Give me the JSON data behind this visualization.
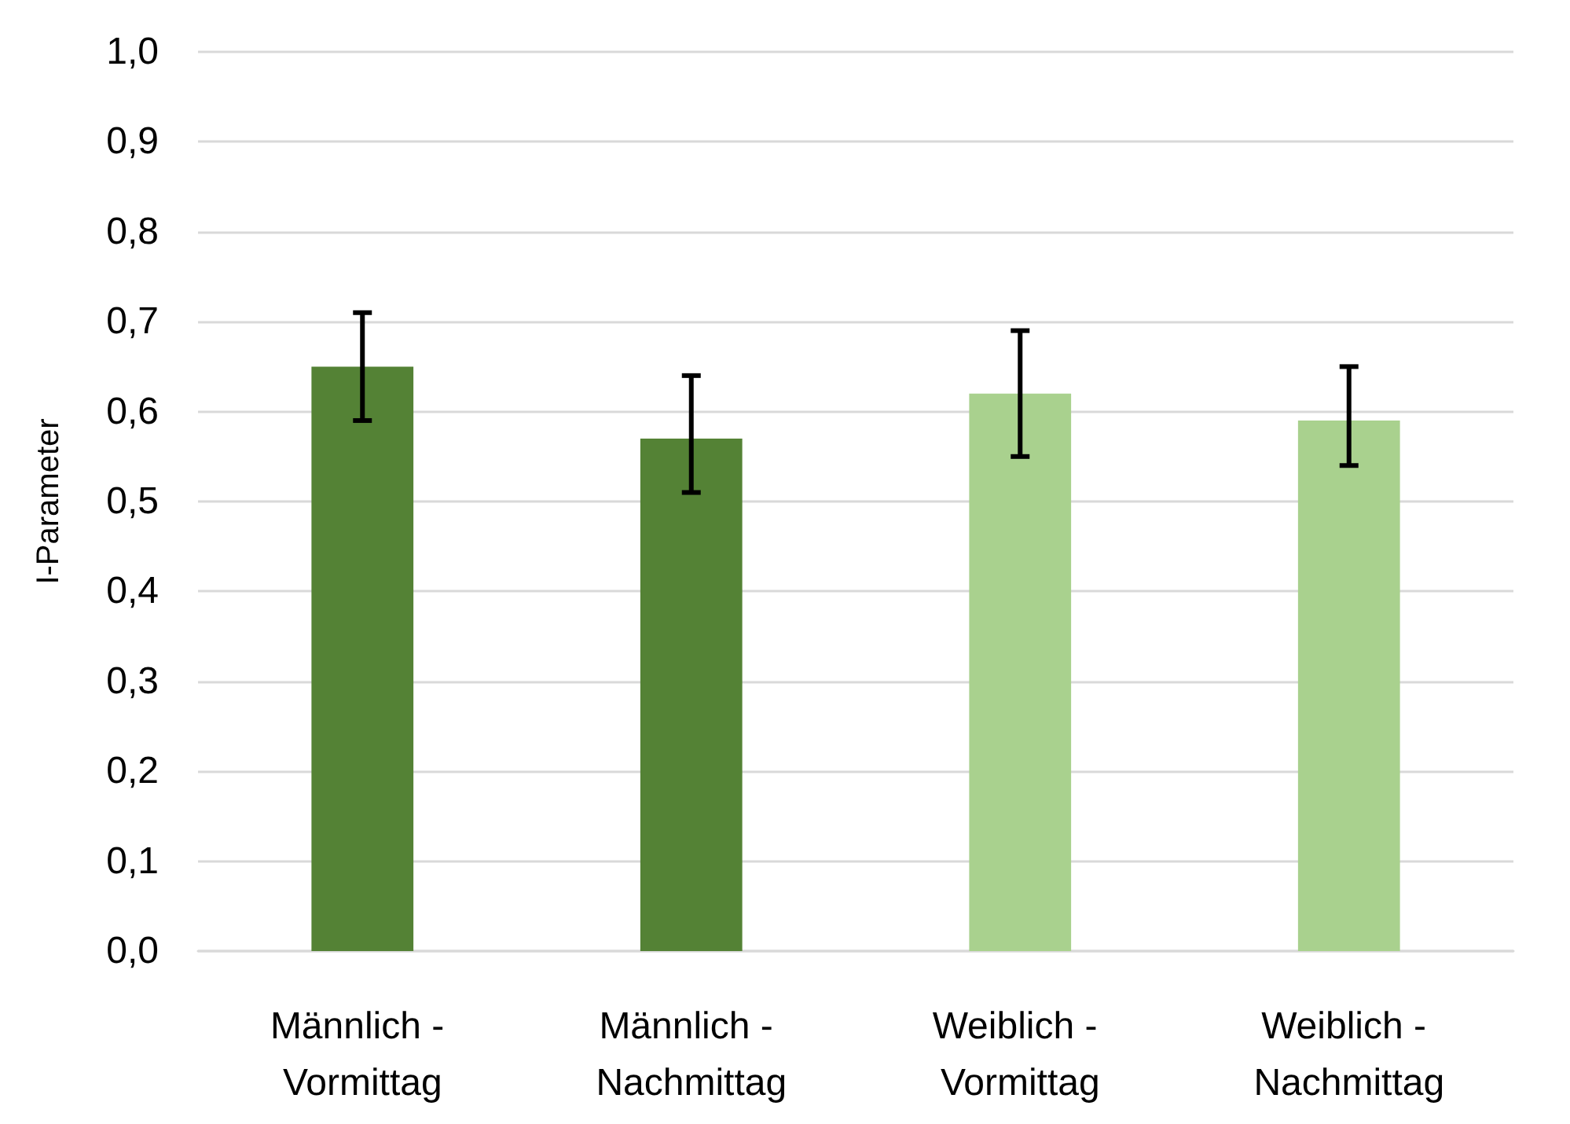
{
  "chart_data": {
    "type": "bar",
    "ylabel": "I-Parameter",
    "categories": [
      "Männlich - Vormittag",
      "Männlich - Nachmittag",
      "Weiblich - Vormittag",
      "Weiblich - Nachmittag"
    ],
    "values": [
      0.65,
      0.57,
      0.62,
      0.59
    ],
    "colors": [
      "#548235",
      "#548235",
      "#a9d18e",
      "#a9d18e"
    ],
    "errors": [
      [
        0.59,
        0.71
      ],
      [
        0.51,
        0.64
      ],
      [
        0.55,
        0.69
      ],
      [
        0.54,
        0.65
      ]
    ],
    "ylim": [
      0,
      1
    ],
    "yticks": [
      {
        "value": 0,
        "label": "0,0"
      },
      {
        "value": 0.1,
        "label": "0,1"
      },
      {
        "value": 0.2,
        "label": "0,2"
      },
      {
        "value": 0.3,
        "label": "0,3"
      },
      {
        "value": 0.4,
        "label": "0,4"
      },
      {
        "value": 0.5,
        "label": "0,5"
      },
      {
        "value": 0.6,
        "label": "0,6"
      },
      {
        "value": 0.7,
        "label": "0,7"
      },
      {
        "value": 0.8,
        "label": "0,8"
      },
      {
        "value": 0.9,
        "label": "0,9"
      },
      {
        "value": 1,
        "label": "1,0"
      }
    ],
    "grid": "y"
  }
}
